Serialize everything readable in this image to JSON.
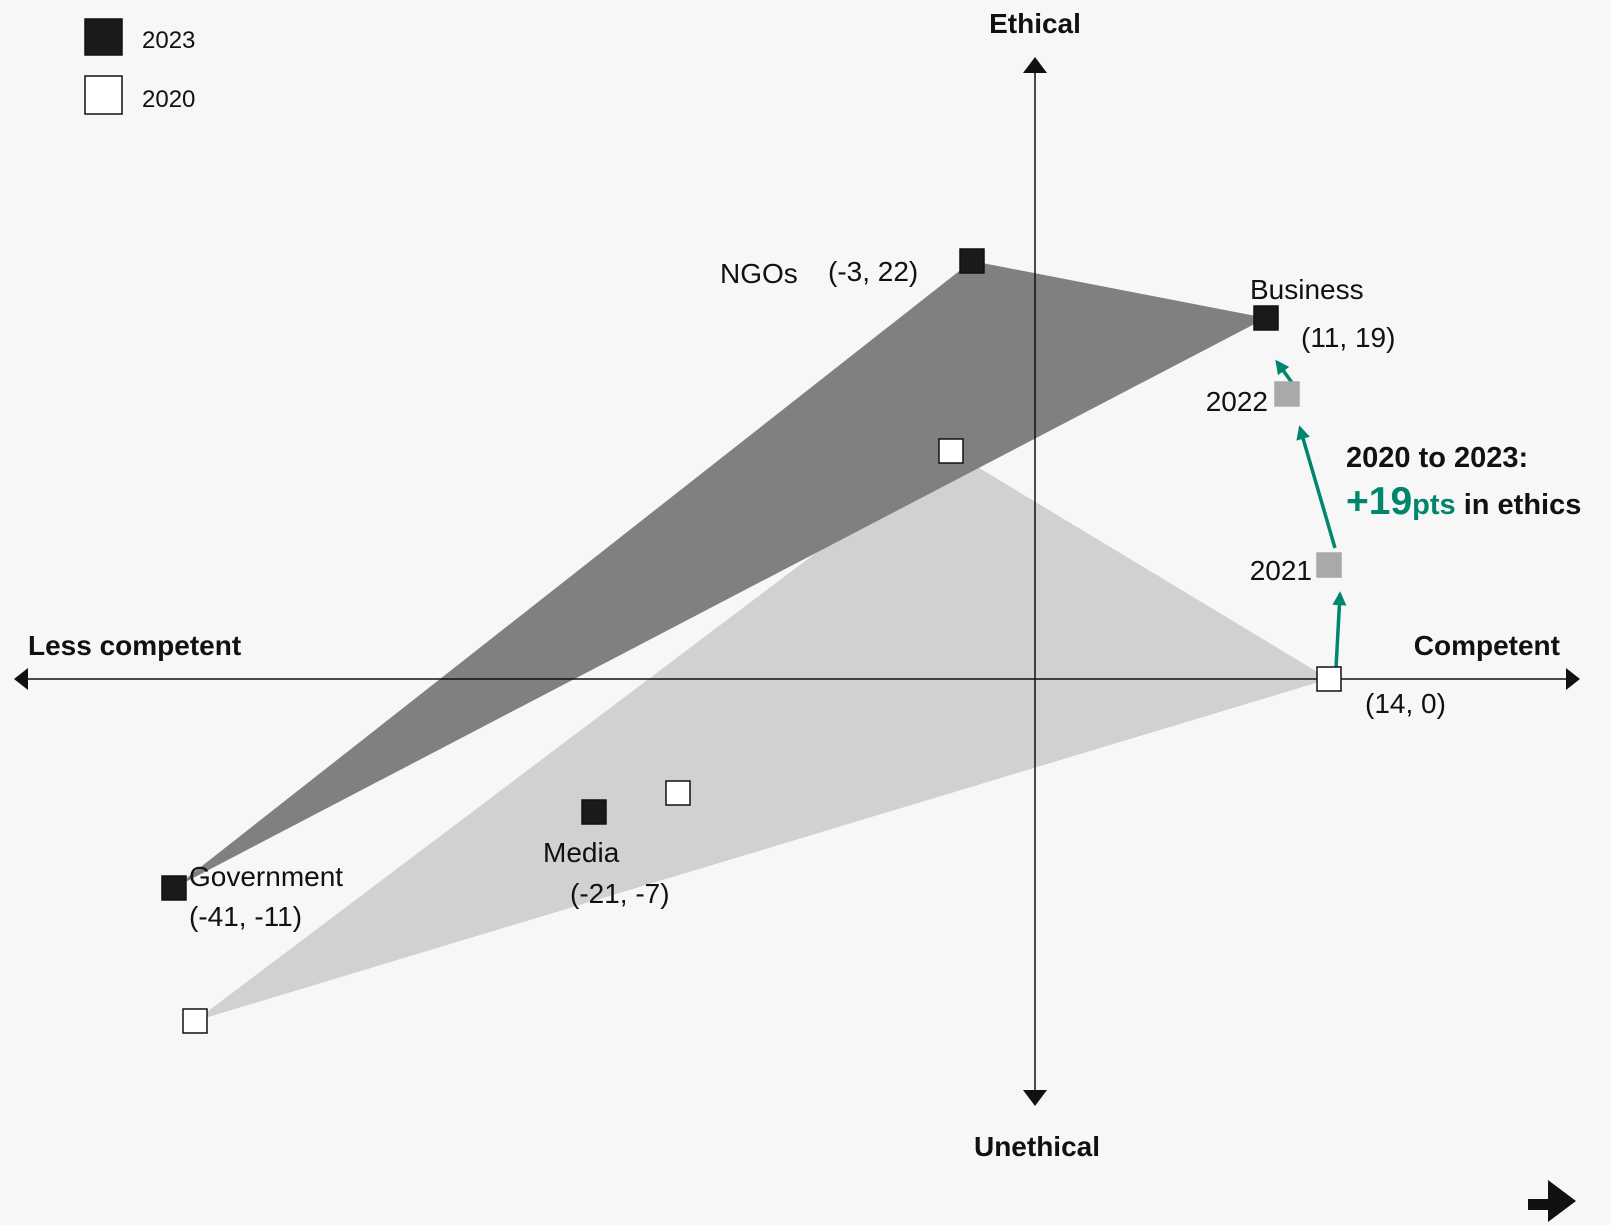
{
  "chart_data": {
    "type": "scatter",
    "x_axis": {
      "negative_label": "Less competent",
      "positive_label": "Competent",
      "range": [
        -45,
        20
      ]
    },
    "y_axis": {
      "positive_label": "Ethical",
      "negative_label": "Unethical",
      "range": [
        -16,
        25
      ]
    },
    "legend": [
      {
        "label": "2023",
        "fill": "#1a1a1a"
      },
      {
        "label": "2020",
        "fill": "#ffffff"
      }
    ],
    "series": [
      {
        "name": "2023",
        "color": "#1a1a1a",
        "polygon_color": "#808080",
        "points": [
          {
            "institution": "NGOs",
            "x": -3,
            "y": 22,
            "label": "NGOs",
            "value_label": "(-3, 22)"
          },
          {
            "institution": "Business",
            "x": 11,
            "y": 19,
            "label": "Business",
            "value_label": "(11, 19)"
          },
          {
            "institution": "Government",
            "x": -41,
            "y": -11,
            "label": "Government",
            "value_label": "(-41, -11)"
          },
          {
            "institution": "Media",
            "x": -21,
            "y": -7,
            "label": "Media",
            "value_label": "(-21, -7)"
          }
        ]
      },
      {
        "name": "2020",
        "color": "#ffffff",
        "polygon_color": "#d1d1d1",
        "points": [
          {
            "institution": "NGOs",
            "x": -4,
            "y": 12
          },
          {
            "institution": "Business",
            "x": 14,
            "y": 0,
            "value_label": "(14, 0)"
          },
          {
            "institution": "Government",
            "x": -40,
            "y": -18
          },
          {
            "institution": "Media",
            "x": -17,
            "y": -6
          }
        ]
      }
    ],
    "business_trajectory": {
      "color": "#00866e",
      "intermediate_fill": "#a9a9a9",
      "points": [
        {
          "year": "2021",
          "x": 14,
          "y": 6
        },
        {
          "year": "2022",
          "x": 12,
          "y": 15
        }
      ]
    },
    "callout": {
      "line1": "2020 to 2023:",
      "value": "+19",
      "unit": "pts",
      "rest": " in ethics"
    }
  }
}
